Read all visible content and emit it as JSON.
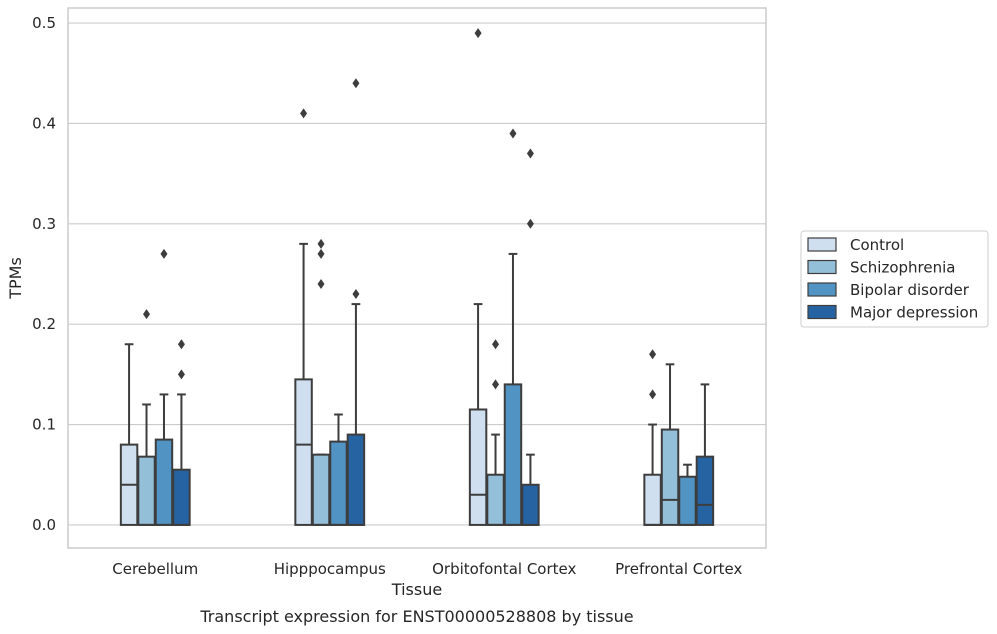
{
  "chart_data": {
    "type": "box",
    "title": "",
    "caption": "Transcript expression for ENST00000528808 by tissue",
    "xlabel": "Tissue",
    "ylabel": "TPMs",
    "ylim": [
      -0.023,
      0.515
    ],
    "yticks": [
      "0.0",
      "0.1",
      "0.2",
      "0.3",
      "0.4",
      "0.5"
    ],
    "ytick_values": [
      0.0,
      0.1,
      0.2,
      0.3,
      0.4,
      0.5
    ],
    "grid": true,
    "legend_position": "right",
    "categories": [
      "Cerebellum",
      "Hipppocampus",
      "Orbitofontal Cortex",
      "Prefrontal Cortex"
    ],
    "series": [
      {
        "name": "Control",
        "color": "#d0dff0",
        "boxes": [
          {
            "q1": 0.0,
            "median": 0.04,
            "q3": 0.08,
            "whisker_low": 0.0,
            "whisker_high": 0.18,
            "outliers": []
          },
          {
            "q1": 0.0,
            "median": 0.08,
            "q3": 0.145,
            "whisker_low": 0.0,
            "whisker_high": 0.28,
            "outliers": [
              0.41
            ]
          },
          {
            "q1": 0.0,
            "median": 0.03,
            "q3": 0.115,
            "whisker_low": 0.0,
            "whisker_high": 0.22,
            "outliers": [
              0.49
            ]
          },
          {
            "q1": 0.0,
            "median": 0.0,
            "q3": 0.05,
            "whisker_low": 0.0,
            "whisker_high": 0.1,
            "outliers": [
              0.13,
              0.17
            ]
          }
        ]
      },
      {
        "name": "Schizophrenia",
        "color": "#94bfd9",
        "boxes": [
          {
            "q1": 0.0,
            "median": 0.0,
            "q3": 0.068,
            "whisker_low": 0.0,
            "whisker_high": 0.12,
            "outliers": [
              0.21
            ]
          },
          {
            "q1": 0.0,
            "median": 0.0,
            "q3": 0.07,
            "whisker_low": 0.0,
            "whisker_high": 0.07,
            "outliers": [
              0.24,
              0.27,
              0.28
            ]
          },
          {
            "q1": 0.0,
            "median": 0.0,
            "q3": 0.05,
            "whisker_low": 0.0,
            "whisker_high": 0.09,
            "outliers": [
              0.14,
              0.18
            ]
          },
          {
            "q1": 0.0,
            "median": 0.025,
            "q3": 0.095,
            "whisker_low": 0.0,
            "whisker_high": 0.16,
            "outliers": []
          }
        ]
      },
      {
        "name": "Bipolar disorder",
        "color": "#5194c4",
        "boxes": [
          {
            "q1": 0.0,
            "median": 0.0,
            "q3": 0.085,
            "whisker_low": 0.0,
            "whisker_high": 0.13,
            "outliers": [
              0.27
            ]
          },
          {
            "q1": 0.0,
            "median": 0.0,
            "q3": 0.083,
            "whisker_low": 0.0,
            "whisker_high": 0.11,
            "outliers": []
          },
          {
            "q1": 0.0,
            "median": 0.0,
            "q3": 0.14,
            "whisker_low": 0.0,
            "whisker_high": 0.27,
            "outliers": [
              0.39
            ]
          },
          {
            "q1": 0.0,
            "median": 0.0,
            "q3": 0.048,
            "whisker_low": 0.0,
            "whisker_high": 0.06,
            "outliers": []
          }
        ]
      },
      {
        "name": "Major depression",
        "color": "#2663a3",
        "boxes": [
          {
            "q1": 0.0,
            "median": 0.0,
            "q3": 0.055,
            "whisker_low": 0.0,
            "whisker_high": 0.13,
            "outliers": [
              0.15,
              0.18
            ]
          },
          {
            "q1": 0.0,
            "median": 0.0,
            "q3": 0.09,
            "whisker_low": 0.0,
            "whisker_high": 0.22,
            "outliers": [
              0.23,
              0.44
            ]
          },
          {
            "q1": 0.0,
            "median": 0.0,
            "q3": 0.04,
            "whisker_low": 0.0,
            "whisker_high": 0.07,
            "outliers": [
              0.3,
              0.37
            ]
          },
          {
            "q1": 0.0,
            "median": 0.02,
            "q3": 0.068,
            "whisker_low": 0.0,
            "whisker_high": 0.14,
            "outliers": []
          }
        ]
      }
    ]
  }
}
